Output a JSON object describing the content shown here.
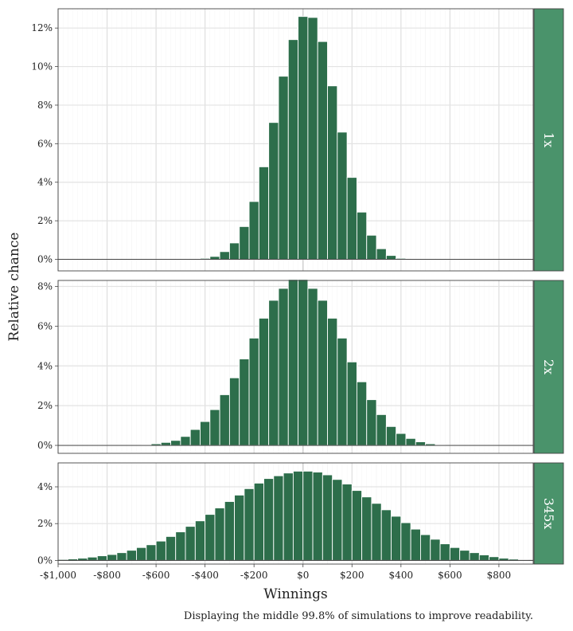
{
  "chart_data": {
    "type": "bar",
    "xlabel": "Winnings",
    "ylabel": "Relative chance",
    "caption": "Displaying the middle 99.8% of simulations to improve readability.",
    "xlim": [
      -1000,
      940
    ],
    "x_ticks": [
      -1000,
      -800,
      -600,
      -400,
      -200,
      0,
      200,
      400,
      600,
      800
    ],
    "x_tick_labels": [
      "-$1,000",
      "-$800",
      "-$600",
      "-$400",
      "-$200",
      "$0",
      "$200",
      "$400",
      "$600",
      "$800"
    ],
    "grid": true,
    "bar_color": "#2d6e4b",
    "strip_color": "#4a936b",
    "panels": [
      {
        "label": "1x",
        "bin_width": 40,
        "ylim": [
          -0.6,
          13.0
        ],
        "y_ticks": [
          0,
          2,
          4,
          6,
          8,
          10,
          12
        ],
        "y_tick_labels": [
          "0%",
          "2%",
          "4%",
          "6%",
          "8%",
          "10%",
          "12%"
        ],
        "bins": [
          {
            "x": -400,
            "y": 0.05
          },
          {
            "x": -360,
            "y": 0.15
          },
          {
            "x": -320,
            "y": 0.4
          },
          {
            "x": -280,
            "y": 0.85
          },
          {
            "x": -240,
            "y": 1.7
          },
          {
            "x": -200,
            "y": 3.0
          },
          {
            "x": -160,
            "y": 4.8
          },
          {
            "x": -120,
            "y": 7.1
          },
          {
            "x": -80,
            "y": 9.5
          },
          {
            "x": -40,
            "y": 11.4
          },
          {
            "x": 0,
            "y": 12.6
          },
          {
            "x": 40,
            "y": 12.55
          },
          {
            "x": 80,
            "y": 11.3
          },
          {
            "x": 120,
            "y": 9.0
          },
          {
            "x": 160,
            "y": 6.6
          },
          {
            "x": 200,
            "y": 4.25
          },
          {
            "x": 240,
            "y": 2.45
          },
          {
            "x": 280,
            "y": 1.25
          },
          {
            "x": 320,
            "y": 0.55
          },
          {
            "x": 360,
            "y": 0.2
          },
          {
            "x": 400,
            "y": 0.05
          }
        ]
      },
      {
        "label": "2x",
        "bin_width": 40,
        "ylim": [
          -0.4,
          8.3
        ],
        "y_ticks": [
          0,
          2,
          4,
          6,
          8
        ],
        "y_tick_labels": [
          "0%",
          "2%",
          "4%",
          "6%",
          "8%"
        ],
        "bins": [
          {
            "x": -640,
            "y": 0.02
          },
          {
            "x": -600,
            "y": 0.08
          },
          {
            "x": -560,
            "y": 0.15
          },
          {
            "x": -520,
            "y": 0.25
          },
          {
            "x": -480,
            "y": 0.45
          },
          {
            "x": -440,
            "y": 0.8
          },
          {
            "x": -400,
            "y": 1.2
          },
          {
            "x": -360,
            "y": 1.8
          },
          {
            "x": -320,
            "y": 2.55
          },
          {
            "x": -280,
            "y": 3.4
          },
          {
            "x": -240,
            "y": 4.35
          },
          {
            "x": -200,
            "y": 5.4
          },
          {
            "x": -160,
            "y": 6.4
          },
          {
            "x": -120,
            "y": 7.3
          },
          {
            "x": -80,
            "y": 7.9
          },
          {
            "x": -40,
            "y": 8.35
          },
          {
            "x": 0,
            "y": 8.35
          },
          {
            "x": 40,
            "y": 7.9
          },
          {
            "x": 80,
            "y": 7.3
          },
          {
            "x": 120,
            "y": 6.4
          },
          {
            "x": 160,
            "y": 5.4
          },
          {
            "x": 200,
            "y": 4.2
          },
          {
            "x": 240,
            "y": 3.2
          },
          {
            "x": 280,
            "y": 2.3
          },
          {
            "x": 320,
            "y": 1.55
          },
          {
            "x": 360,
            "y": 0.95
          },
          {
            "x": 400,
            "y": 0.6
          },
          {
            "x": 440,
            "y": 0.35
          },
          {
            "x": 480,
            "y": 0.18
          },
          {
            "x": 520,
            "y": 0.08
          },
          {
            "x": 560,
            "y": 0.02
          }
        ]
      },
      {
        "label": "345x",
        "bin_width": 40,
        "ylim": [
          -0.2,
          5.3
        ],
        "y_ticks": [
          0,
          2,
          4
        ],
        "y_tick_labels": [
          "0%",
          "2%",
          "4%"
        ],
        "bins": [
          {
            "x": -980,
            "y": 0.05
          },
          {
            "x": -940,
            "y": 0.08
          },
          {
            "x": -900,
            "y": 0.12
          },
          {
            "x": -860,
            "y": 0.18
          },
          {
            "x": -820,
            "y": 0.25
          },
          {
            "x": -780,
            "y": 0.32
          },
          {
            "x": -740,
            "y": 0.42
          },
          {
            "x": -700,
            "y": 0.55
          },
          {
            "x": -660,
            "y": 0.7
          },
          {
            "x": -620,
            "y": 0.85
          },
          {
            "x": -580,
            "y": 1.05
          },
          {
            "x": -540,
            "y": 1.3
          },
          {
            "x": -500,
            "y": 1.55
          },
          {
            "x": -460,
            "y": 1.85
          },
          {
            "x": -420,
            "y": 2.15
          },
          {
            "x": -380,
            "y": 2.5
          },
          {
            "x": -340,
            "y": 2.85
          },
          {
            "x": -300,
            "y": 3.2
          },
          {
            "x": -260,
            "y": 3.55
          },
          {
            "x": -220,
            "y": 3.9
          },
          {
            "x": -180,
            "y": 4.2
          },
          {
            "x": -140,
            "y": 4.45
          },
          {
            "x": -100,
            "y": 4.6
          },
          {
            "x": -60,
            "y": 4.75
          },
          {
            "x": -20,
            "y": 4.85
          },
          {
            "x": 20,
            "y": 4.85
          },
          {
            "x": 60,
            "y": 4.8
          },
          {
            "x": 100,
            "y": 4.65
          },
          {
            "x": 140,
            "y": 4.4
          },
          {
            "x": 180,
            "y": 4.15
          },
          {
            "x": 220,
            "y": 3.8
          },
          {
            "x": 260,
            "y": 3.45
          },
          {
            "x": 300,
            "y": 3.1
          },
          {
            "x": 340,
            "y": 2.75
          },
          {
            "x": 380,
            "y": 2.4
          },
          {
            "x": 420,
            "y": 2.05
          },
          {
            "x": 460,
            "y": 1.7
          },
          {
            "x": 500,
            "y": 1.4
          },
          {
            "x": 540,
            "y": 1.15
          },
          {
            "x": 580,
            "y": 0.9
          },
          {
            "x": 620,
            "y": 0.7
          },
          {
            "x": 660,
            "y": 0.55
          },
          {
            "x": 700,
            "y": 0.42
          },
          {
            "x": 740,
            "y": 0.3
          },
          {
            "x": 780,
            "y": 0.2
          },
          {
            "x": 820,
            "y": 0.12
          },
          {
            "x": 860,
            "y": 0.07
          },
          {
            "x": 900,
            "y": 0.03
          }
        ]
      }
    ]
  }
}
